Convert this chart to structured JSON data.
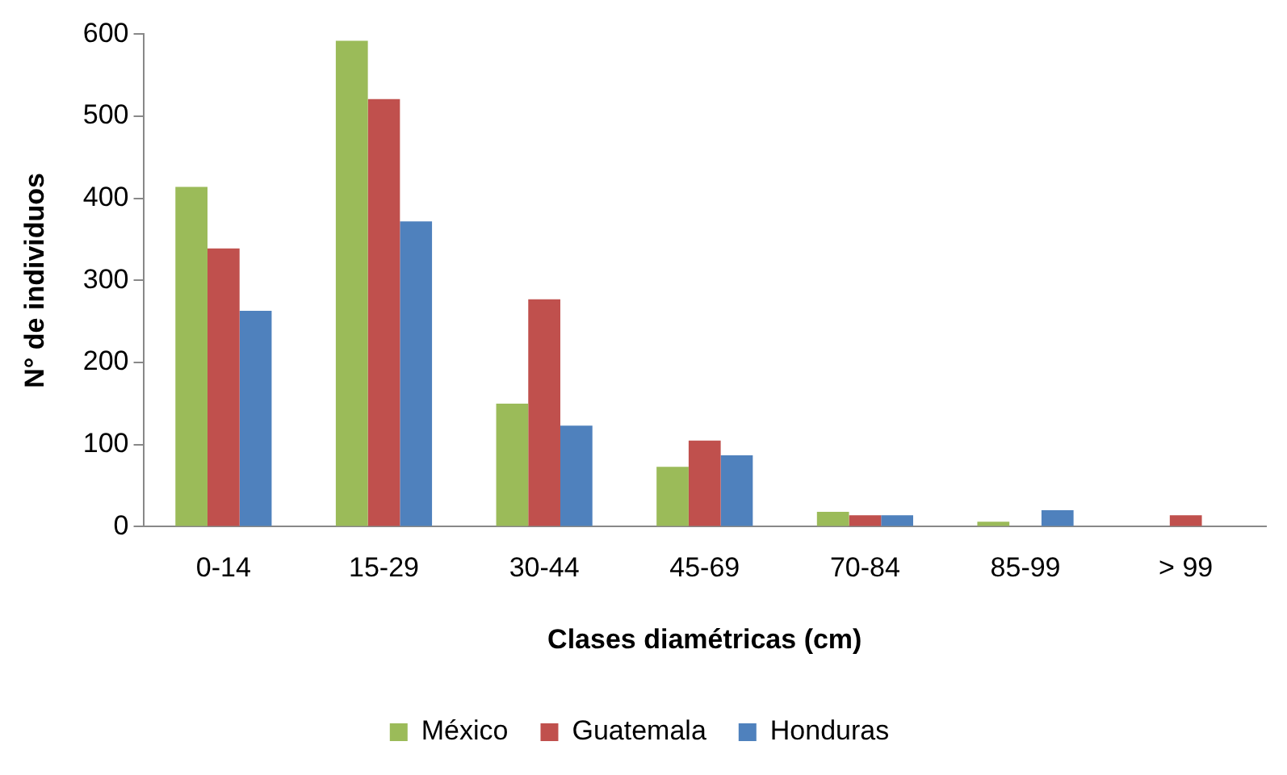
{
  "chart_data": {
    "type": "bar",
    "xlabel": "Clases diamétricas (cm)",
    "ylabel": "N° de individuos",
    "categories": [
      "0-14",
      "15-29",
      "30-44",
      "45-69",
      "70-84",
      "85-99",
      "> 99"
    ],
    "series": [
      {
        "name": "México",
        "color": "#9bbb59",
        "values": [
          414,
          592,
          150,
          73,
          18,
          6,
          0
        ]
      },
      {
        "name": "Guatemala",
        "color": "#c0504d",
        "values": [
          339,
          521,
          277,
          105,
          14,
          0,
          14
        ]
      },
      {
        "name": "Honduras",
        "color": "#4f81bd",
        "values": [
          263,
          372,
          123,
          87,
          14,
          20,
          0
        ]
      }
    ],
    "ylim": [
      0,
      600
    ],
    "yticks": [
      0,
      100,
      200,
      300,
      400,
      500,
      600
    ],
    "grid": false,
    "legend": "bottom"
  }
}
